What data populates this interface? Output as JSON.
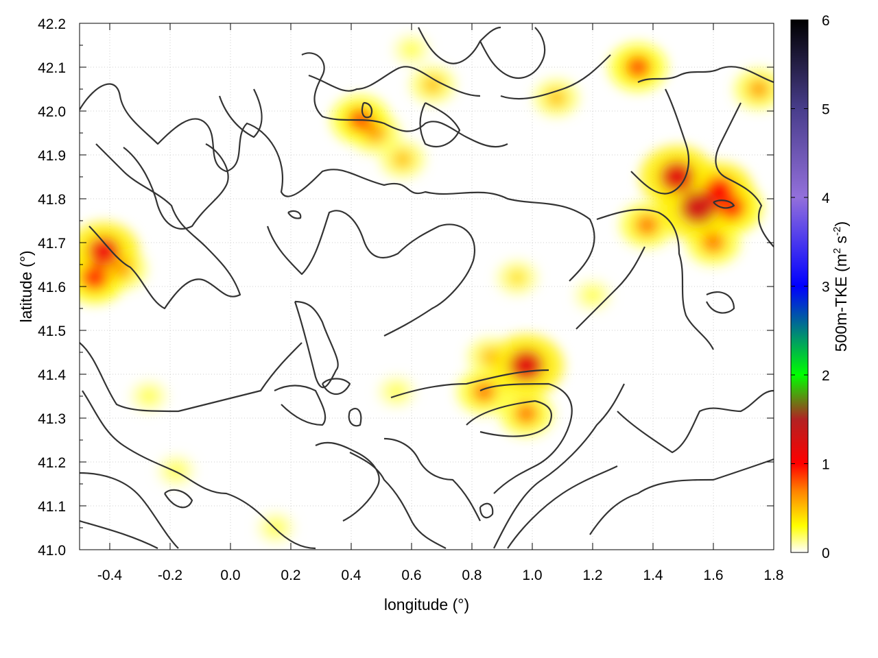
{
  "chart_data": {
    "type": "heatmap",
    "xlabel": "longitude (°)",
    "ylabel": "latitude (°)",
    "colorbar_label": "500m-TKE (m² s⁻²)",
    "colorbar_label_base": "500m-TKE (m",
    "colorbar_label_sq": "2",
    "colorbar_label_mid": " s",
    "colorbar_label_exp": "-2",
    "colorbar_label_end": ")",
    "xlim": [
      -0.5,
      1.8
    ],
    "ylim": [
      41.0,
      42.2
    ],
    "clim": [
      0,
      6
    ],
    "x_ticks": [
      {
        "value": -0.4,
        "label": "-0.4"
      },
      {
        "value": -0.2,
        "label": "-0.2"
      },
      {
        "value": 0.0,
        "label": "0.0"
      },
      {
        "value": 0.2,
        "label": "0.2"
      },
      {
        "value": 0.4,
        "label": "0.4"
      },
      {
        "value": 0.6,
        "label": "0.6"
      },
      {
        "value": 0.8,
        "label": "0.8"
      },
      {
        "value": 1.0,
        "label": "1.0"
      },
      {
        "value": 1.2,
        "label": "1.2"
      },
      {
        "value": 1.4,
        "label": "1.4"
      },
      {
        "value": 1.6,
        "label": "1.6"
      },
      {
        "value": 1.8,
        "label": "1.8"
      }
    ],
    "y_ticks": [
      {
        "value": 41.0,
        "label": "41.0"
      },
      {
        "value": 41.1,
        "label": "41.1"
      },
      {
        "value": 41.2,
        "label": "41.2"
      },
      {
        "value": 41.3,
        "label": "41.3"
      },
      {
        "value": 41.4,
        "label": "41.4"
      },
      {
        "value": 41.5,
        "label": "41.5"
      },
      {
        "value": 41.6,
        "label": "41.6"
      },
      {
        "value": 41.7,
        "label": "41.7"
      },
      {
        "value": 41.8,
        "label": "41.8"
      },
      {
        "value": 41.9,
        "label": "41.9"
      },
      {
        "value": 42.0,
        "label": "42.0"
      },
      {
        "value": 42.1,
        "label": "42.1"
      },
      {
        "value": 42.2,
        "label": "42.2"
      }
    ],
    "colorbar_ticks": [
      {
        "value": 0,
        "label": "0"
      },
      {
        "value": 1,
        "label": "1"
      },
      {
        "value": 2,
        "label": "2"
      },
      {
        "value": 3,
        "label": "3"
      },
      {
        "value": 4,
        "label": "4"
      },
      {
        "value": 5,
        "label": "5"
      },
      {
        "value": 6,
        "label": "6"
      }
    ],
    "colormap": [
      {
        "v": 0.0,
        "color": "#ffffff"
      },
      {
        "v": 0.3,
        "color": "#ffff00"
      },
      {
        "v": 0.7,
        "color": "#ff8000"
      },
      {
        "v": 1.0,
        "color": "#ff0000"
      },
      {
        "v": 1.5,
        "color": "#b22222"
      },
      {
        "v": 2.0,
        "color": "#00ff00"
      },
      {
        "v": 3.0,
        "color": "#0000ff"
      },
      {
        "v": 4.0,
        "color": "#9370db"
      },
      {
        "v": 5.0,
        "color": "#483d8b"
      },
      {
        "v": 6.0,
        "color": "#000000"
      }
    ],
    "grid": true,
    "tke_hotspots": [
      {
        "lon": -0.42,
        "lat": 41.68,
        "tke": 1.1
      },
      {
        "lon": -0.45,
        "lat": 41.62,
        "tke": 0.9
      },
      {
        "lon": -0.36,
        "lat": 41.64,
        "tke": 0.6
      },
      {
        "lon": 0.43,
        "lat": 41.98,
        "tke": 0.8
      },
      {
        "lon": 0.48,
        "lat": 41.95,
        "tke": 0.6
      },
      {
        "lon": 0.57,
        "lat": 41.89,
        "tke": 0.5
      },
      {
        "lon": 0.67,
        "lat": 42.06,
        "tke": 0.5
      },
      {
        "lon": 1.08,
        "lat": 42.03,
        "tke": 0.5
      },
      {
        "lon": 1.35,
        "lat": 42.1,
        "tke": 0.8
      },
      {
        "lon": 1.75,
        "lat": 42.05,
        "tke": 0.6
      },
      {
        "lon": 1.48,
        "lat": 41.85,
        "tke": 1.2
      },
      {
        "lon": 1.55,
        "lat": 41.78,
        "tke": 1.3
      },
      {
        "lon": 1.62,
        "lat": 41.82,
        "tke": 1.0
      },
      {
        "lon": 1.66,
        "lat": 41.78,
        "tke": 0.9
      },
      {
        "lon": 1.38,
        "lat": 41.74,
        "tke": 0.7
      },
      {
        "lon": 1.6,
        "lat": 41.7,
        "tke": 0.7
      },
      {
        "lon": 0.98,
        "lat": 41.42,
        "tke": 1.2
      },
      {
        "lon": 0.86,
        "lat": 41.44,
        "tke": 0.5
      },
      {
        "lon": 0.84,
        "lat": 41.36,
        "tke": 0.7
      },
      {
        "lon": 0.98,
        "lat": 41.31,
        "tke": 0.7
      },
      {
        "lon": 0.95,
        "lat": 41.62,
        "tke": 0.4
      },
      {
        "lon": 1.2,
        "lat": 41.58,
        "tke": 0.3
      },
      {
        "lon": -0.27,
        "lat": 41.35,
        "tke": 0.3
      },
      {
        "lon": 0.15,
        "lat": 41.05,
        "tke": 0.3
      },
      {
        "lon": 0.55,
        "lat": 41.36,
        "tke": 0.3
      },
      {
        "lon": -0.18,
        "lat": 41.18,
        "tke": 0.3
      },
      {
        "lon": 0.6,
        "lat": 42.14,
        "tke": 0.3
      }
    ]
  }
}
